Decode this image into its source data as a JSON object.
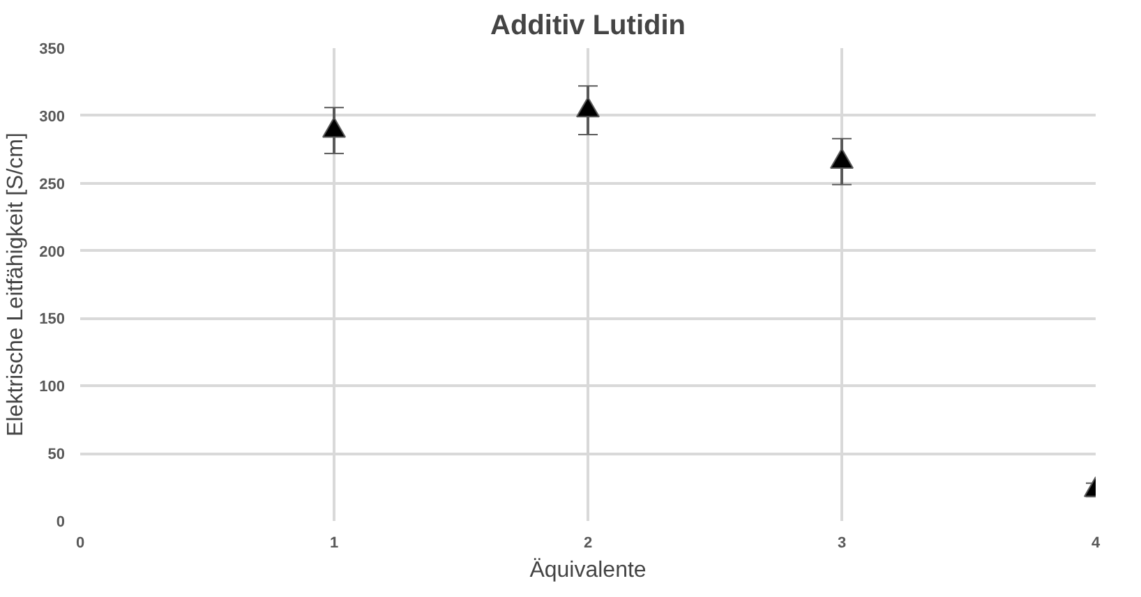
{
  "chart_data": {
    "type": "scatter",
    "title": "Additiv Lutidin",
    "xlabel": "Äquivalente",
    "ylabel": "Elektrische Leitfähigkeit [S/cm]",
    "x": [
      1,
      2,
      3,
      4
    ],
    "series": [
      {
        "color": "#000000",
        "values": [
          289,
          304,
          266,
          23
        ],
        "errors": [
          17,
          18,
          17,
          5
        ]
      }
    ],
    "marker": "triangle",
    "xlim": [
      0,
      4
    ],
    "ylim": [
      0,
      350
    ],
    "xticks": [
      0,
      1,
      2,
      3,
      4
    ],
    "yticks": [
      0,
      50,
      100,
      150,
      200,
      250,
      300,
      350
    ],
    "grid": true
  }
}
